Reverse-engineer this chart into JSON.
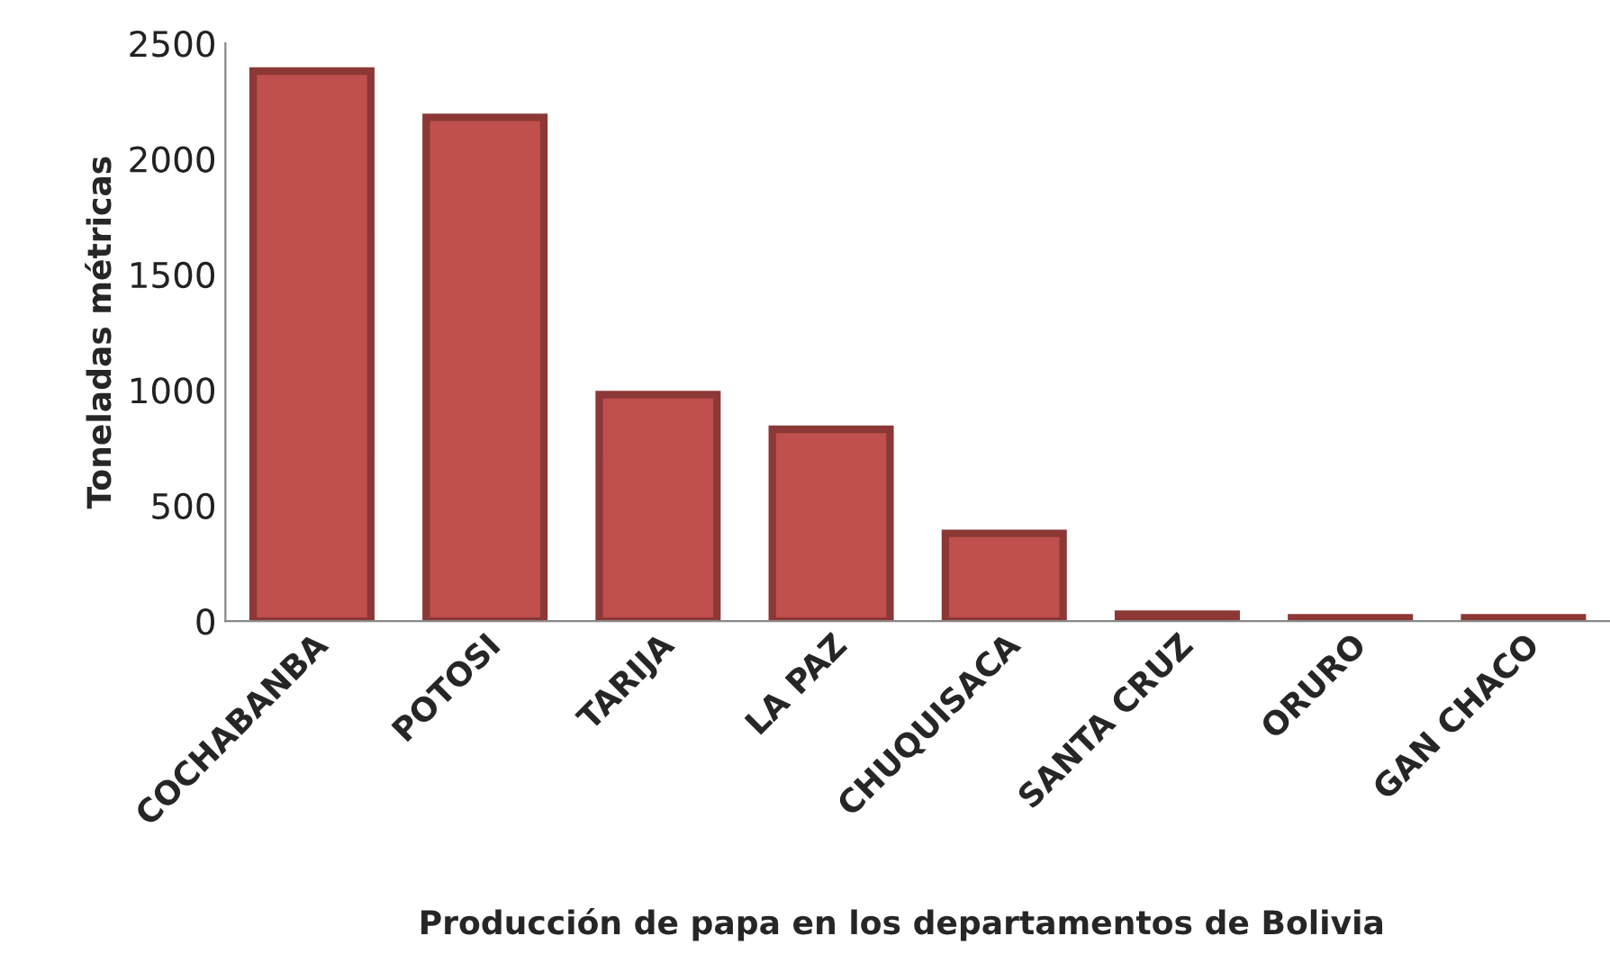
{
  "chart_data": {
    "type": "bar",
    "xlabel": "Producción de papa en los departamentos de Bolivia",
    "ylabel": "Toneladas métricas",
    "categories": [
      "COCHABANBA",
      "POTOSI",
      "TARIJA",
      "LA PAZ",
      "CHUQUISACA",
      "SANTA CRUZ",
      "ORURO",
      "GAN CHACO"
    ],
    "values": [
      2380,
      2180,
      980,
      830,
      380,
      30,
      15,
      15
    ],
    "color": "#c0504d",
    "ylim": [
      0,
      2500
    ],
    "yticks": [
      0,
      500,
      1000,
      1500,
      2000,
      2500
    ],
    "grid": false
  }
}
